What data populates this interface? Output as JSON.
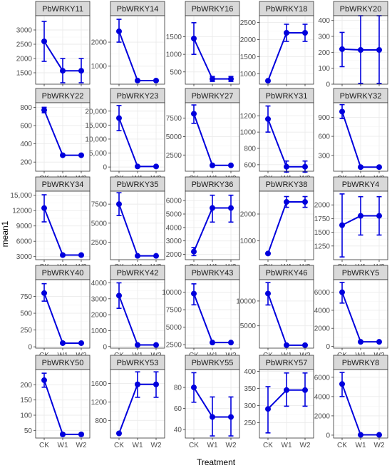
{
  "chart_data": {
    "type": "line",
    "xlabel": "Treatment",
    "ylabel": "mean1",
    "categories": [
      "CK",
      "W1",
      "W2"
    ],
    "grid": true,
    "colors": {
      "series": "#0000dd",
      "strip": "#d9d9d9",
      "border": "#333333",
      "grid": "#ebebeb"
    },
    "panels": [
      {
        "title": "PbWRKY11",
        "ylim": [
          1100,
          3500
        ],
        "yticks": [
          1500,
          2000,
          2500,
          3000
        ],
        "ytick_labels": [
          "1500",
          "2000",
          "2500",
          "3000"
        ],
        "values": [
          2600,
          1570,
          1570
        ],
        "err_low": [
          1900,
          1150,
          1150
        ],
        "err_high": [
          3300,
          2000,
          2000
        ]
      },
      {
        "title": "PbWRKY14",
        "ylim": [
          250,
          3100
        ],
        "yticks": [
          1000,
          2000
        ],
        "ytick_labels": [
          "1000",
          "2000"
        ],
        "values": [
          2450,
          400,
          400
        ],
        "err_low": [
          2000,
          370,
          370
        ],
        "err_high": [
          2950,
          430,
          430
        ]
      },
      {
        "title": "PbWRKY16",
        "ylim": [
          150,
          2100
        ],
        "yticks": [
          500,
          1000,
          1500
        ],
        "ytick_labels": [
          "500",
          "1000",
          "1500"
        ],
        "values": [
          1450,
          300,
          300
        ],
        "err_low": [
          1000,
          230,
          230
        ],
        "err_high": [
          1900,
          370,
          370
        ]
      },
      {
        "title": "PbWRKY18",
        "ylim": [
          700,
          2700
        ],
        "yticks": [
          1000,
          1500,
          2000,
          2500
        ],
        "ytick_labels": [
          "1000",
          "1500",
          "2000",
          "2500"
        ],
        "values": [
          800,
          2200,
          2200
        ],
        "err_low": [
          790,
          1950,
          1950
        ],
        "err_high": [
          810,
          2450,
          2450
        ]
      },
      {
        "title": "PbWRKY20",
        "ylim": [
          0,
          430
        ],
        "yticks": [
          0,
          100,
          200,
          300,
          400
        ],
        "ytick_labels": [
          "0",
          "100",
          "200",
          "300",
          "400"
        ],
        "values": [
          220,
          215,
          215
        ],
        "err_low": [
          110,
          5,
          5
        ],
        "err_high": [
          325,
          430,
          430
        ]
      },
      {
        "title": "PbWRKY22",
        "ylim": [
          100,
          850
        ],
        "yticks": [
          200,
          400,
          600,
          800
        ],
        "ytick_labels": [
          "200",
          "400",
          "600",
          "800"
        ],
        "values": [
          770,
          275,
          275
        ],
        "err_low": [
          740,
          265,
          265
        ],
        "err_high": [
          800,
          285,
          285
        ]
      },
      {
        "title": "PbWRKY23",
        "ylim": [
          -1500,
          23000
        ],
        "yticks": [
          0,
          5000,
          10000,
          15000,
          20000
        ],
        "ytick_labels": [
          "0",
          "5,000",
          "10,000",
          "15,000",
          "20,000"
        ],
        "values": [
          17500,
          200,
          200
        ],
        "err_low": [
          13000,
          100,
          100
        ],
        "err_high": [
          22000,
          300,
          300
        ]
      },
      {
        "title": "PbWRKY27",
        "ylim": [
          300,
          9600
        ],
        "yticks": [
          2500,
          5000,
          7500
        ],
        "ytick_labels": [
          "2500",
          "5000",
          "7500"
        ],
        "values": [
          8100,
          1100,
          1100
        ],
        "err_low": [
          6800,
          1000,
          1000
        ],
        "err_high": [
          9300,
          1200,
          1200
        ]
      },
      {
        "title": "PbWRKY31",
        "ylim": [
          520,
          1360
        ],
        "yticks": [
          600,
          800,
          1000,
          1200
        ],
        "ytick_labels": [
          "600",
          "800",
          "1000",
          "1200"
        ],
        "values": [
          1160,
          575,
          575
        ],
        "err_low": [
          1000,
          510,
          510
        ],
        "err_high": [
          1320,
          645,
          645
        ]
      },
      {
        "title": "PbWRKY32",
        "ylim": [
          50,
          1130
        ],
        "yticks": [
          300,
          600,
          900
        ],
        "ytick_labels": [
          "300",
          "600",
          "900"
        ],
        "values": [
          990,
          115,
          115
        ],
        "err_low": [
          880,
          100,
          100
        ],
        "err_high": [
          1100,
          130,
          130
        ]
      },
      {
        "title": "PbWRKY34",
        "ylim": [
          2400,
          15800
        ],
        "yticks": [
          3000,
          6000,
          9000,
          12000,
          15000
        ],
        "ytick_labels": [
          "3000",
          "6000",
          "9000",
          "12000",
          "15,000"
        ],
        "values": [
          12500,
          3300,
          3300
        ],
        "err_low": [
          9800,
          3100,
          3100
        ],
        "err_high": [
          15100,
          3500,
          3500
        ]
      },
      {
        "title": "PbWRKY35",
        "ylim": [
          200,
          9200
        ],
        "yticks": [
          2500,
          5000,
          7500
        ],
        "ytick_labels": [
          "2500",
          "5000",
          "7500"
        ],
        "values": [
          7500,
          700,
          700
        ],
        "err_low": [
          6000,
          600,
          600
        ],
        "err_high": [
          9000,
          800,
          800
        ]
      },
      {
        "title": "PbWRKY36",
        "ylim": [
          1600,
          6700
        ],
        "yticks": [
          2000,
          3000,
          4000,
          5000,
          6000
        ],
        "ytick_labels": [
          "2000",
          "3000",
          "4000",
          "5000",
          "6000"
        ],
        "values": [
          2200,
          5450,
          5450
        ],
        "err_low": [
          1900,
          4400,
          4400
        ],
        "err_high": [
          2500,
          6400,
          6400
        ]
      },
      {
        "title": "PbWRKY38",
        "ylim": [
          300,
          2850
        ],
        "yticks": [
          1000,
          2000
        ],
        "ytick_labels": [
          "1000",
          "2000"
        ],
        "values": [
          530,
          2450,
          2450
        ],
        "err_low": [
          520,
          2250,
          2250
        ],
        "err_high": [
          540,
          2650,
          2650
        ]
      },
      {
        "title": "PbWRKY4",
        "ylim": [
          1000,
          2250
        ],
        "yticks": [
          1250,
          1500,
          1750,
          2000
        ],
        "ytick_labels": [
          "1250",
          "1500",
          "1750",
          "2000"
        ],
        "values": [
          1630,
          1800,
          1800
        ],
        "err_low": [
          1050,
          1450,
          1450
        ],
        "err_high": [
          2200,
          2150,
          2150
        ]
      },
      {
        "title": "PbWRKY40",
        "ylim": [
          -20,
          1000
        ],
        "yticks": [
          0,
          250,
          500,
          750
        ],
        "ytick_labels": [
          "0",
          "250",
          "500",
          "750"
        ],
        "values": [
          800,
          55,
          55
        ],
        "err_low": [
          680,
          50,
          50
        ],
        "err_high": [
          940,
          60,
          60
        ]
      },
      {
        "title": "PbWRKY42",
        "ylim": [
          -100,
          4200
        ],
        "yticks": [
          0,
          1000,
          2000,
          3000,
          4000
        ],
        "ytick_labels": [
          "0",
          "1000",
          "2000",
          "3000",
          "4000"
        ],
        "values": [
          3200,
          100,
          100
        ],
        "err_low": [
          2400,
          80,
          80
        ],
        "err_high": [
          4000,
          120,
          120
        ]
      },
      {
        "title": "PbWRKY43",
        "ylim": [
          2000,
          11800
        ],
        "yticks": [
          2500,
          5000,
          7500,
          10000
        ],
        "ytick_labels": [
          "2500",
          "5000",
          "7500",
          "10000"
        ],
        "values": [
          9800,
          2800,
          2800
        ],
        "err_low": [
          8200,
          2700,
          2700
        ],
        "err_high": [
          11200,
          2900,
          2900
        ]
      },
      {
        "title": "PbWRKY46",
        "ylim": [
          500,
          14300
        ],
        "yticks": [
          5000,
          10000
        ],
        "ytick_labels": [
          "5000",
          "10000"
        ],
        "values": [
          11500,
          1100,
          1100
        ],
        "err_low": [
          9200,
          1000,
          1000
        ],
        "err_high": [
          13700,
          1200,
          1200
        ]
      },
      {
        "title": "PbWRKY5",
        "ylim": [
          -200,
          7400
        ],
        "yticks": [
          0,
          2000,
          4000,
          6000
        ],
        "ytick_labels": [
          "0",
          "2000",
          "4000",
          "6000"
        ],
        "values": [
          6000,
          500,
          500
        ],
        "err_low": [
          4800,
          400,
          400
        ],
        "err_high": [
          7100,
          600,
          600
        ]
      },
      {
        "title": "PbWRKY50",
        "ylim": [
          25,
          250
        ],
        "yticks": [
          50,
          100,
          150,
          200
        ],
        "ytick_labels": [
          "50",
          "100",
          "150",
          "200"
        ],
        "values": [
          215,
          37,
          37
        ],
        "err_low": [
          192,
          33,
          33
        ],
        "err_high": [
          238,
          41,
          41
        ]
      },
      {
        "title": "PbWRKY53",
        "ylim": [
          420,
          1900
        ],
        "yticks": [
          400,
          800,
          1200,
          1600
        ],
        "ytick_labels": [
          "400",
          "800",
          "1200",
          "1600"
        ],
        "values": [
          520,
          1580,
          1580
        ],
        "err_low": [
          510,
          1300,
          1300
        ],
        "err_high": [
          530,
          1850,
          1850
        ]
      },
      {
        "title": "PbWRKY55",
        "ylim": [
          32,
          97
        ],
        "yticks": [
          40,
          60,
          80
        ],
        "ytick_labels": [
          "40",
          "60",
          "80"
        ],
        "values": [
          80,
          52,
          52
        ],
        "err_low": [
          66,
          34,
          34
        ],
        "err_high": [
          94,
          71,
          71
        ]
      },
      {
        "title": "PbWRKY57",
        "ylim": [
          205,
          405
        ],
        "yticks": [
          250,
          300,
          350,
          400
        ],
        "ytick_labels": [
          "250",
          "300",
          "350",
          "400"
        ],
        "values": [
          290,
          345,
          345
        ],
        "err_low": [
          220,
          298,
          298
        ],
        "err_high": [
          355,
          395,
          395
        ]
      },
      {
        "title": "PbWRKY8",
        "ylim": [
          -300,
          6800
        ],
        "yticks": [
          0,
          2000,
          4000,
          6000
        ],
        "ytick_labels": [
          "0",
          "2000",
          "4000",
          "6000"
        ],
        "values": [
          5300,
          30,
          30
        ],
        "err_low": [
          4000,
          10,
          10
        ],
        "err_high": [
          6500,
          50,
          50
        ]
      }
    ]
  }
}
